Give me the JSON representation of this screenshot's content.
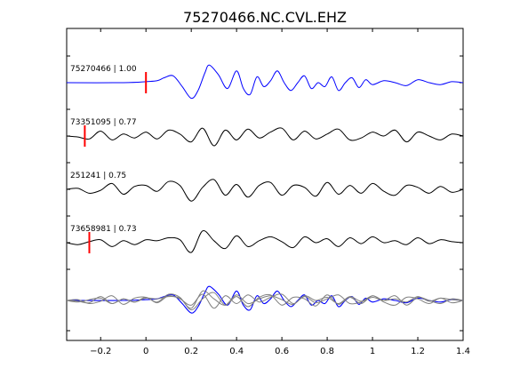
{
  "chart_data": {
    "type": "line",
    "title": "75270466.NC.CVL.EHZ",
    "xlim": [
      -0.35,
      1.4
    ],
    "xticks": [
      -0.2,
      0,
      0.2,
      0.4,
      0.6,
      0.8,
      1,
      1.2,
      1.4
    ],
    "xtick_labels": [
      "−0.2",
      "0",
      "0.2",
      "0.4",
      "0.6",
      "0.8",
      "1",
      "1.2",
      "1.4"
    ],
    "xlabel": "",
    "ylabel": "",
    "grid": false,
    "legend": "none",
    "colors": {
      "reference": "#0000ff",
      "trace": "#000000",
      "overlay": "#808080",
      "pick": "#ff0000"
    },
    "traces": [
      {
        "label": "75270466 | 1.00",
        "color": "#0000ff",
        "pick_time": 0.0,
        "x": [
          -0.35,
          -0.1,
          0.0,
          0.05,
          0.08,
          0.12,
          0.16,
          0.2,
          0.23,
          0.26,
          0.28,
          0.32,
          0.36,
          0.4,
          0.43,
          0.46,
          0.49,
          0.52,
          0.55,
          0.58,
          0.61,
          0.64,
          0.67,
          0.7,
          0.73,
          0.76,
          0.79,
          0.82,
          0.85,
          0.88,
          0.91,
          0.94,
          0.97,
          1.0,
          1.05,
          1.1,
          1.15,
          1.2,
          1.25,
          1.3,
          1.35,
          1.4
        ],
        "y": [
          0,
          0,
          0.05,
          0.1,
          0.25,
          0.35,
          -0.2,
          -0.8,
          -0.4,
          0.5,
          0.9,
          0.4,
          -0.3,
          0.6,
          -0.3,
          -0.6,
          0.3,
          -0.2,
          0.1,
          0.6,
          0.0,
          -0.4,
          0.0,
          0.35,
          -0.3,
          0.0,
          -0.2,
          0.3,
          -0.4,
          0.0,
          0.25,
          -0.25,
          0.15,
          -0.1,
          0.1,
          0.0,
          -0.15,
          0.15,
          0.0,
          -0.1,
          0.05,
          0.0
        ]
      },
      {
        "label": "73351095 | 0.77",
        "color": "#000000",
        "pick_time": -0.27,
        "x": [
          -0.35,
          -0.3,
          -0.25,
          -0.2,
          -0.15,
          -0.1,
          -0.05,
          0.0,
          0.05,
          0.1,
          0.15,
          0.2,
          0.25,
          0.3,
          0.35,
          0.4,
          0.45,
          0.5,
          0.55,
          0.6,
          0.65,
          0.7,
          0.75,
          0.8,
          0.85,
          0.9,
          0.95,
          1.0,
          1.05,
          1.1,
          1.15,
          1.2,
          1.25,
          1.3,
          1.35,
          1.4
        ],
        "y": [
          0,
          -0.05,
          -0.15,
          0.25,
          -0.2,
          0.1,
          -0.1,
          0.2,
          -0.15,
          0.3,
          0.1,
          -0.3,
          0.4,
          -0.5,
          0.3,
          -0.2,
          0.35,
          -0.1,
          0.2,
          0.4,
          -0.2,
          0.25,
          -0.15,
          0.1,
          0.35,
          -0.2,
          -0.1,
          0.2,
          0.0,
          0.3,
          -0.3,
          0.2,
          0.0,
          -0.2,
          0.1,
          0.0
        ]
      },
      {
        "label": "251241 | 0.75",
        "color": "#000000",
        "pick_time": null,
        "x": [
          -0.35,
          -0.3,
          -0.25,
          -0.2,
          -0.15,
          -0.1,
          -0.05,
          0.0,
          0.05,
          0.1,
          0.15,
          0.2,
          0.25,
          0.3,
          0.35,
          0.4,
          0.45,
          0.5,
          0.55,
          0.6,
          0.65,
          0.7,
          0.75,
          0.8,
          0.85,
          0.9,
          0.95,
          1.0,
          1.05,
          1.1,
          1.15,
          1.2,
          1.25,
          1.3,
          1.35,
          1.4
        ],
        "y": [
          0,
          0.05,
          -0.2,
          -0.05,
          0.3,
          -0.25,
          0.15,
          0.2,
          -0.1,
          0.4,
          0.2,
          -0.6,
          0.1,
          0.5,
          -0.3,
          0.25,
          -0.4,
          0.2,
          0.35,
          -0.3,
          0.2,
          0.1,
          -0.35,
          0.35,
          -0.25,
          0.2,
          -0.2,
          0.3,
          -0.1,
          -0.3,
          0.2,
          0.1,
          -0.2,
          0.15,
          -0.15,
          0.0
        ]
      },
      {
        "label": "73658981 | 0.73",
        "color": "#000000",
        "pick_time": -0.25,
        "x": [
          -0.35,
          -0.3,
          -0.25,
          -0.2,
          -0.15,
          -0.1,
          -0.05,
          0.0,
          0.05,
          0.1,
          0.15,
          0.2,
          0.25,
          0.3,
          0.35,
          0.4,
          0.45,
          0.5,
          0.55,
          0.6,
          0.65,
          0.7,
          0.75,
          0.8,
          0.85,
          0.9,
          0.95,
          1.0,
          1.05,
          1.1,
          1.15,
          1.2,
          1.25,
          1.3,
          1.35,
          1.4
        ],
        "y": [
          0,
          -0.1,
          0.05,
          0.15,
          -0.2,
          0.1,
          -0.1,
          0.15,
          0.1,
          0.25,
          0.15,
          -0.5,
          0.6,
          0.1,
          -0.3,
          0.35,
          -0.2,
          0.1,
          0.3,
          0.05,
          -0.25,
          0.3,
          0.0,
          0.2,
          -0.2,
          0.25,
          -0.05,
          0.3,
          0.0,
          0.1,
          -0.1,
          0.25,
          -0.05,
          0.15,
          0.05,
          0.0
        ]
      }
    ]
  }
}
